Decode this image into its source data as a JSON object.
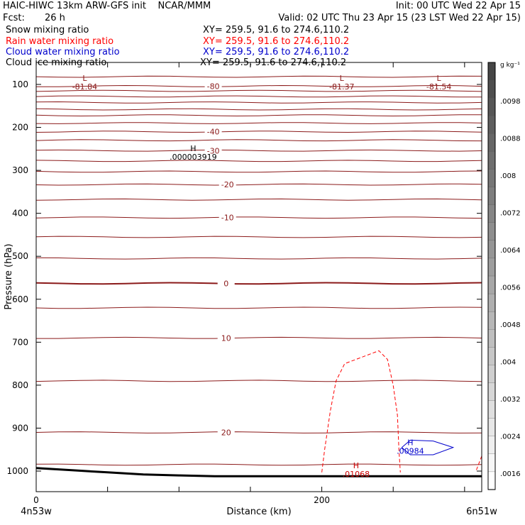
{
  "header": {
    "title_left": "HAIC-HIWC 13km ARW-GFS init    NCAR/MMM",
    "init": "Init: 00 UTC Wed 22 Apr 15",
    "fcst_label": "Fcst:",
    "fcst_value": "26 h",
    "valid": "Valid: 02 UTC Thu 23 Apr 15 (23 LST Wed 22 Apr 15)"
  },
  "fields": [
    {
      "label": "Snow mixing ratio",
      "xy": "XY= 259.5, 91.6 to 274.6,110.2",
      "color": "#000000"
    },
    {
      "label": "Rain water mixing ratio",
      "xy": "XY= 259.5, 91.6 to 274.6,110.2",
      "color": "#ff0000"
    },
    {
      "label": "Cloud water mixing ratio",
      "xy": "XY= 259.5, 91.6 to 274.6,110.2",
      "color": "#0000cc"
    },
    {
      "label": "Cloud ice mixing ratio",
      "xy": "XY= 259.5, 91.6 to 274.6,110.2",
      "color": "#000000"
    }
  ],
  "chart_data": {
    "type": "line",
    "xlabel": "Distance (km)",
    "ylabel": "Pressure (hPa)",
    "xlim": [
      0,
      312
    ],
    "ylim": [
      1050,
      70
    ],
    "x_ticks": [
      0,
      50,
      100,
      150,
      200,
      250,
      300
    ],
    "x_tick_labels": [
      {
        "value": 0,
        "label": "0"
      },
      {
        "value": 200,
        "label": "200"
      }
    ],
    "y_ticks": [
      100,
      200,
      300,
      400,
      500,
      600,
      700,
      800,
      900,
      1000
    ],
    "y_tick_labels": [
      "100",
      "200",
      "300",
      "400",
      "500",
      "600",
      "700",
      "800",
      "900",
      "1000"
    ],
    "endpoints": {
      "left": "4n53w",
      "right": "6n51w"
    },
    "isotherm_color": "#8b1a1a",
    "isotherm_levels_hpa": [
      82,
      104,
      115,
      128,
      142,
      158,
      172,
      190,
      210,
      230,
      254,
      278,
      303,
      333,
      368,
      410,
      455,
      505,
      563,
      620,
      690,
      790,
      910,
      985
    ],
    "isotherm_labels": [
      {
        "text": "-80",
        "x": 124,
        "p": 104
      },
      {
        "text": "-40",
        "x": 124,
        "p": 210
      },
      {
        "text": "-30",
        "x": 124,
        "p": 254
      },
      {
        "text": "-20",
        "x": 134,
        "p": 333
      },
      {
        "text": "-10",
        "x": 134,
        "p": 410
      },
      {
        "text": "0",
        "x": 133,
        "p": 563
      },
      {
        "text": "10",
        "x": 133,
        "p": 690
      },
      {
        "text": "20",
        "x": 133,
        "p": 910
      }
    ],
    "extrema": [
      {
        "marker": "L",
        "value": "-81.84",
        "x": 34,
        "p": 102,
        "color": "#8b1a1a"
      },
      {
        "marker": "L",
        "value": "-81.37",
        "x": 214,
        "p": 102,
        "color": "#8b1a1a"
      },
      {
        "marker": "L",
        "value": "-81.54",
        "x": 282,
        "p": 102,
        "color": "#8b1a1a"
      },
      {
        "marker": "H",
        "value": ".000003919",
        "x": 110,
        "p": 265,
        "color": "#000000"
      },
      {
        "marker": "H",
        "value": ".00984",
        "x": 262,
        "p": 950,
        "color": "#0000cc"
      },
      {
        "marker": "H",
        "value": ".01068",
        "x": 224,
        "p": 1003,
        "color": "#cc0000"
      }
    ],
    "rain_contour": [
      [
        200,
        1003
      ],
      [
        202,
        950
      ],
      [
        206,
        860
      ],
      [
        210,
        790
      ],
      [
        216,
        750
      ],
      [
        228,
        735
      ],
      [
        240,
        720
      ],
      [
        246,
        740
      ],
      [
        250,
        800
      ],
      [
        253,
        870
      ],
      [
        254,
        950
      ],
      [
        255,
        1003
      ]
    ],
    "rain_contour_small": [
      [
        312,
        965
      ],
      [
        308,
        1000
      ]
    ],
    "cloud_water_contour": [
      [
        256,
        945
      ],
      [
        262,
        928
      ],
      [
        278,
        930
      ],
      [
        292,
        945
      ],
      [
        278,
        962
      ],
      [
        262,
        962
      ],
      [
        256,
        945
      ]
    ],
    "terrain": [
      [
        0,
        993
      ],
      [
        25,
        998
      ],
      [
        50,
        1003
      ],
      [
        75,
        1008
      ],
      [
        100,
        1010
      ],
      [
        125,
        1012
      ],
      [
        150,
        1012
      ],
      [
        200,
        1012
      ],
      [
        250,
        1012
      ],
      [
        312,
        1012
      ]
    ],
    "colorbar": {
      "unit": "g kg⁻¹",
      "labels": [
        ".0098",
        ".0088",
        ".008",
        ".0072",
        ".0064",
        ".0056",
        ".0048",
        ".004",
        ".0032",
        ".0024",
        ".0016"
      ]
    }
  }
}
